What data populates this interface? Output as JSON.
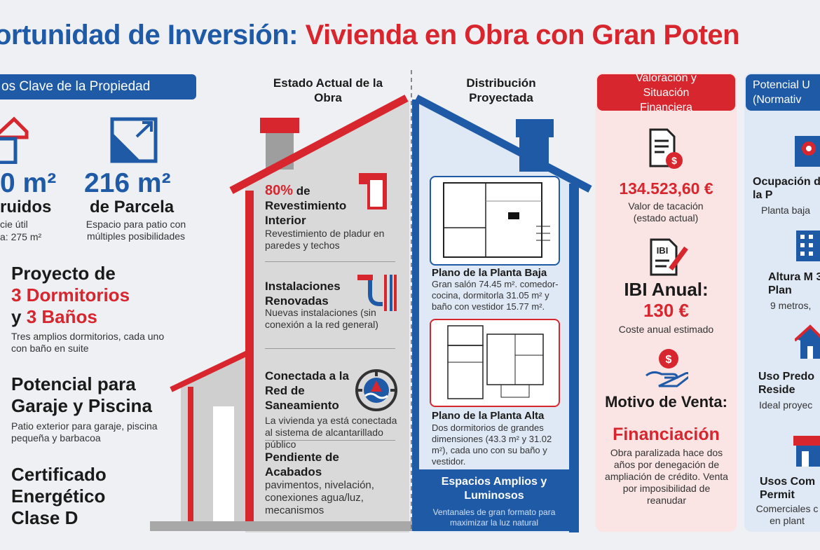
{
  "title": {
    "part1": "ortunidad de Inversión:",
    "part2": "Vivienda en Obra con Gran Poten"
  },
  "colors": {
    "blue": "#1f5aa6",
    "red": "#d7262e",
    "grey": "#d9d9d9"
  },
  "left": {
    "header": "os Clave de la Propiedad",
    "built": {
      "value": "0 m²",
      "label": "ruidos",
      "note1": "cie útil",
      "note2": "a: 275 m²"
    },
    "plot": {
      "value": "216 m²",
      "label": "de Parcela",
      "note": "Espacio para patio con múltiples posibilidades"
    },
    "project": {
      "line1": "Proyecto de",
      "line2": "3 Dormitorios",
      "line3a": "y",
      "line3b": "3 Baños",
      "note": "Tres amplios dormitorios, cada uno con baño en suite"
    },
    "garage": {
      "line1": "Potencial para",
      "line2": "Garaje y Piscina",
      "note": "Patio exterior para garaje, piscina pequeña y barbacoa"
    },
    "cert": {
      "line1": "Certificado",
      "line2": "Energético",
      "line3": "Clase D"
    }
  },
  "house": {
    "title_left": "Estado Actual de la Obra",
    "title_right": "Distribución Proyectada",
    "items": [
      {
        "pct": "80%",
        "head_rest": "de",
        "head2": "Revestimiento Interior",
        "text": "Revestimiento de pladur en paredes y techos"
      },
      {
        "head": "Instalaciones Renovadas",
        "text": "Nuevas instalaciones (sin conexión a la red general)"
      },
      {
        "head": "Conectada a la Red de Saneamiento",
        "text": "La vivienda ya está conectada al sistema de alcantarillado público"
      },
      {
        "head": "Pendiente de Acabados",
        "text": "pavimentos, nivelación, conexiones agua/luz, mecanismos"
      }
    ],
    "plan_low": {
      "head": "Plano de la Planta Baja",
      "text": "Gran salón 74.45 m². comedor-cocina, dormitorla 31.05 m² y baño con vestidor 15.77 m²."
    },
    "plan_high": {
      "head": "Plano de la Planta Alta",
      "text": "Dos dormitorios de grandes dimensiones (43.3 m² y 31.02 m²), cada uno con su baño y vestidor."
    },
    "footer": {
      "head": "Espacios Amplios y Luminosos",
      "text": "Ventanales de gran formato para maximizar la luz natural"
    }
  },
  "finance": {
    "header": "Valoración y Situación Financiera",
    "value": "134.523,60 €",
    "value_label": "Valor de tacación (estado actual)",
    "ibi_icon_text": "IBI",
    "ibi_head": "IBI Anual:",
    "ibi_value": "130 €",
    "ibi_label": "Coste anual estimado",
    "motive1": "Motivo de Venta:",
    "motive2": "Financiación",
    "motive_text": "Obra paralizada hace dos años por denegación de ampliación de crédito. Venta por imposibilidad de reanudar"
  },
  "urban": {
    "header": "Potencial U (Normativ",
    "occ_head": "Ocupación de la P",
    "occ_text": "Planta baja",
    "height_head": "Altura M 3 Plan",
    "height_text": "9 metros,",
    "use_head": "Uso Predo Reside",
    "use_text": "Ideal proyec",
    "com_head": "Usos Com Permit",
    "com_text": "Comerciales c en plant"
  }
}
